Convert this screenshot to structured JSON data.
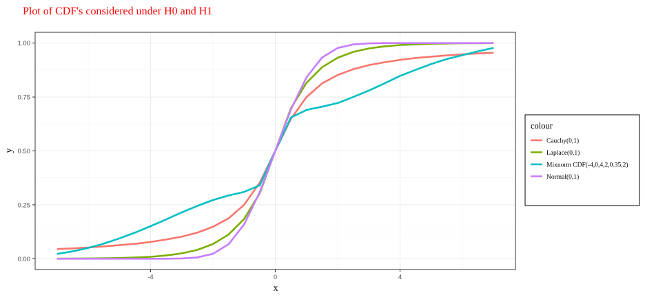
{
  "chart_data": {
    "type": "line",
    "title": "Plot of CDF's considered under H0 and H1",
    "xlabel": "x",
    "ylabel": "y",
    "xlim": [
      -7,
      7
    ],
    "ylim": [
      0,
      1
    ],
    "x_ticks": [
      -4,
      0,
      4
    ],
    "x_tick_labels": [
      "-4",
      "0",
      "4"
    ],
    "y_ticks": [
      0,
      0.25,
      0.5,
      0.75,
      1
    ],
    "y_tick_labels": [
      "0.00",
      "0.25",
      "0.50",
      "0.75",
      "1.00"
    ],
    "grid": true,
    "legend": {
      "title": "colour",
      "position": "right"
    },
    "x": [
      -7,
      -6.5,
      -6,
      -5.5,
      -5,
      -4.5,
      -4,
      -3.5,
      -3,
      -2.5,
      -2,
      -1.5,
      -1,
      -0.5,
      0,
      0.5,
      1,
      1.5,
      2,
      2.5,
      3,
      3.5,
      4,
      4.5,
      5,
      5.5,
      6,
      6.5,
      7
    ],
    "series": [
      {
        "name": "Cauchy(0,1)",
        "color": "#F8766D",
        "values": [
          0.045,
          0.048,
          0.052,
          0.057,
          0.063,
          0.069,
          0.078,
          0.089,
          0.102,
          0.121,
          0.148,
          0.187,
          0.25,
          0.352,
          0.5,
          0.648,
          0.75,
          0.813,
          0.852,
          0.879,
          0.898,
          0.911,
          0.922,
          0.931,
          0.937,
          0.943,
          0.948,
          0.952,
          0.955
        ]
      },
      {
        "name": "Laplace(0,1)",
        "color": "#7CAE00",
        "values": [
          0.0005,
          0.0008,
          0.0012,
          0.002,
          0.0034,
          0.0056,
          0.009,
          0.015,
          0.025,
          0.041,
          0.068,
          0.112,
          0.184,
          0.303,
          0.5,
          0.697,
          0.816,
          0.888,
          0.932,
          0.959,
          0.975,
          0.985,
          0.991,
          0.994,
          0.997,
          0.998,
          0.999,
          0.999,
          1.0
        ]
      },
      {
        "name": "Mixnorm CDF(-4,0,4,2,0.35,2)",
        "color": "#00BFC4",
        "values": [
          0.022,
          0.034,
          0.05,
          0.07,
          0.094,
          0.121,
          0.151,
          0.182,
          0.215,
          0.245,
          0.272,
          0.293,
          0.31,
          0.34,
          0.5,
          0.655,
          0.69,
          0.705,
          0.722,
          0.75,
          0.78,
          0.813,
          0.848,
          0.876,
          0.903,
          0.926,
          0.944,
          0.962,
          0.978
        ]
      },
      {
        "name": "Normal(0,1)",
        "color": "#C77CFF",
        "values": [
          0.0,
          0.0,
          0.0,
          0.0,
          0.0,
          0.0,
          0.0,
          0.0002,
          0.0013,
          0.0062,
          0.0228,
          0.0668,
          0.1587,
          0.3085,
          0.5,
          0.6915,
          0.8413,
          0.9332,
          0.9772,
          0.9938,
          0.9987,
          0.9998,
          1.0,
          1.0,
          1.0,
          1.0,
          1.0,
          1.0,
          1.0
        ]
      }
    ]
  }
}
